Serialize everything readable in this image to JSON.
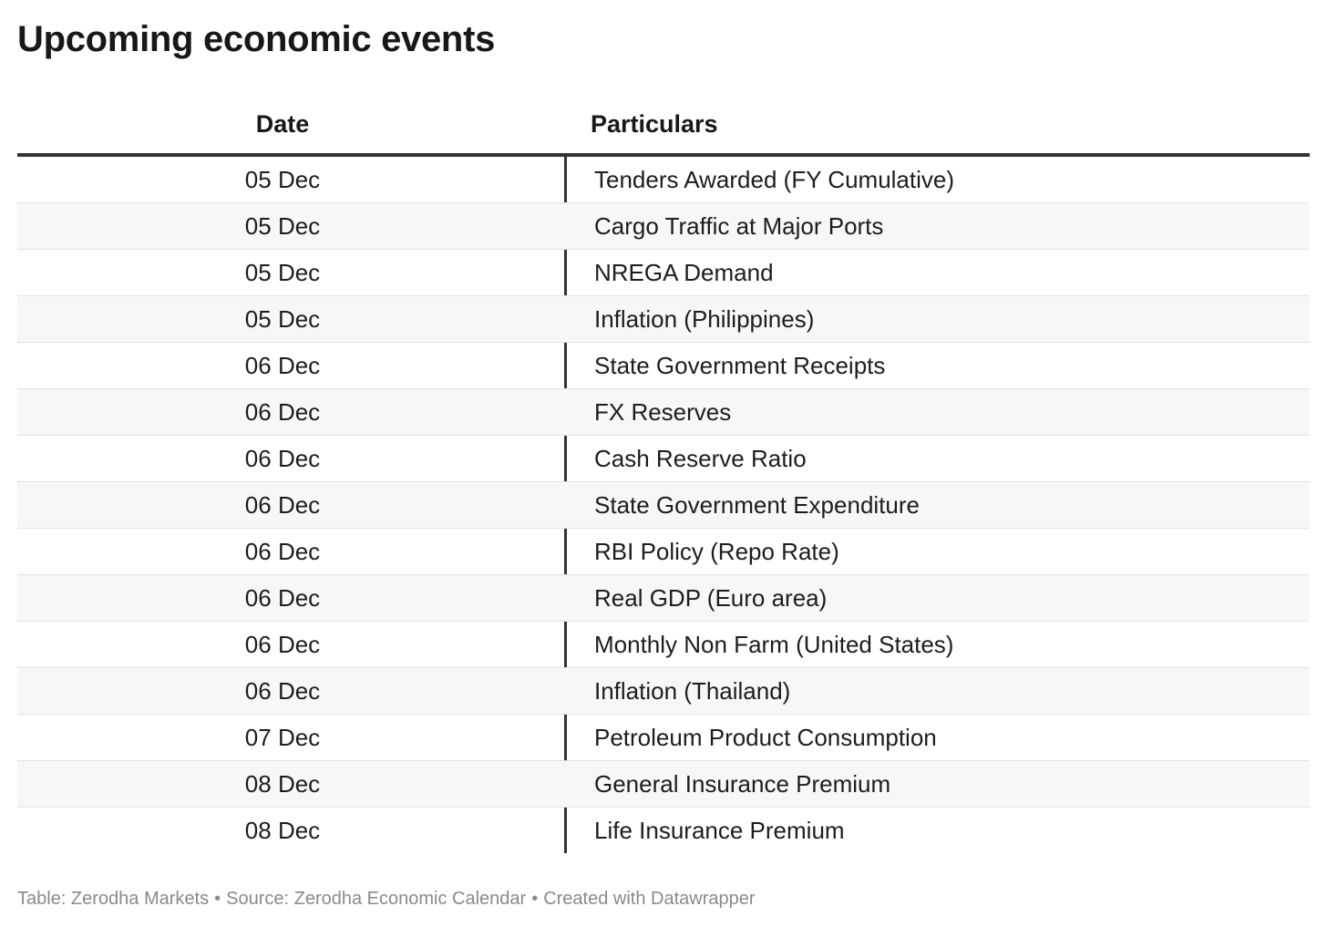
{
  "chart_data": {
    "type": "table",
    "title": "Upcoming economic events",
    "columns": [
      "Date",
      "Particulars"
    ],
    "rows": [
      {
        "date": "05 Dec",
        "particulars": "Tenders Awarded (FY Cumulative)"
      },
      {
        "date": "05 Dec",
        "particulars": "Cargo Traffic at Major Ports"
      },
      {
        "date": "05 Dec",
        "particulars": "NREGA Demand"
      },
      {
        "date": "05 Dec",
        "particulars": "Inflation (Philippines)"
      },
      {
        "date": "06 Dec",
        "particulars": "State Government Receipts"
      },
      {
        "date": "06 Dec",
        "particulars": "FX Reserves"
      },
      {
        "date": "06 Dec",
        "particulars": "Cash Reserve Ratio"
      },
      {
        "date": "06 Dec",
        "particulars": "State Government Expenditure"
      },
      {
        "date": "06 Dec",
        "particulars": "RBI Policy (Repo Rate)"
      },
      {
        "date": "06 Dec",
        "particulars": "Real GDP (Euro area)"
      },
      {
        "date": "06 Dec",
        "particulars": "Monthly Non Farm (United States)"
      },
      {
        "date": "06 Dec",
        "particulars": "Inflation (Thailand)"
      },
      {
        "date": "07 Dec",
        "particulars": "Petroleum Product Consumption"
      },
      {
        "date": "08 Dec",
        "particulars": "General Insurance Premium"
      },
      {
        "date": "08 Dec",
        "particulars": "Life Insurance Premium"
      }
    ],
    "colors": {
      "header_rule": "#333333",
      "row_alt": "#f7f7f7",
      "row_rule": "#e2e2e2",
      "footer_text": "#8a8a8a"
    }
  },
  "footer": {
    "table_credit": "Table: Zerodha Markets",
    "source": "Source: Zerodha Economic Calendar",
    "created_with": "Created with Datawrapper",
    "separator": "•"
  }
}
